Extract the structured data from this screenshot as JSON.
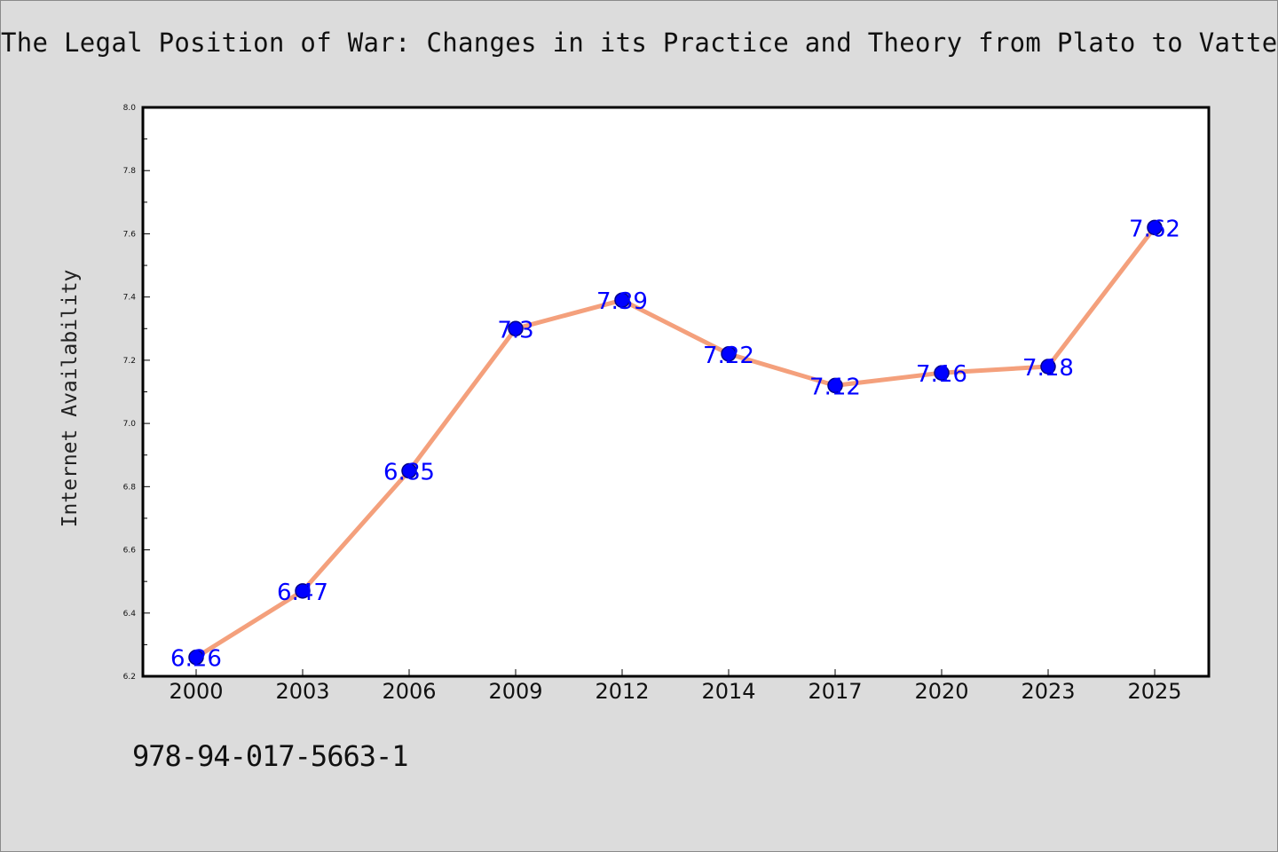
{
  "title": "The Legal Position of War: Changes in its Practice and Theory from Plato to Vattel",
  "isbn": "978-94-017-5663-1",
  "colors": {
    "background": "#dcdcdc",
    "plot_background": "#ffffff",
    "line": "#f4a07c",
    "marker": "#0000ff",
    "data_label": "#0000ff"
  },
  "chart_data": {
    "type": "line",
    "title": "The Legal Position of War: Changes in its Practice and Theory from Plato to Vattel",
    "xlabel": "",
    "ylabel": "Internet Availability",
    "categories": [
      "2000",
      "2003",
      "2006",
      "2009",
      "2012",
      "2014",
      "2017",
      "2020",
      "2023",
      "2025"
    ],
    "values": [
      6.26,
      6.47,
      6.85,
      7.3,
      7.39,
      7.22,
      7.12,
      7.16,
      7.18,
      7.62
    ],
    "data_labels": [
      "6.26",
      "6.47",
      "6.85",
      "7.3",
      "7.39",
      "7.22",
      "7.12",
      "7.16",
      "7.18",
      "7.62"
    ],
    "ylim": [
      6.2,
      8.0
    ],
    "yticks": [
      "6.2",
      "6.4",
      "6.6",
      "6.8",
      "7.0",
      "7.2",
      "7.4",
      "7.6",
      "7.8",
      "8.0"
    ],
    "grid": false,
    "legend": "none"
  }
}
